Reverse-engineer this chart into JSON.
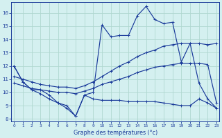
{
  "series": [
    {
      "x": [
        0,
        1,
        2,
        3,
        4,
        5,
        6,
        7,
        8,
        9,
        10,
        11,
        12,
        13,
        14,
        15,
        16,
        17,
        18,
        19,
        20,
        21,
        22,
        23
      ],
      "y": [
        12.0,
        10.8,
        10.2,
        10.2,
        9.8,
        9.2,
        8.8,
        8.2,
        9.8,
        10.0,
        15.1,
        14.2,
        14.3,
        14.3,
        15.8,
        16.5,
        15.5,
        15.2,
        15.3,
        12.3,
        13.7,
        10.7,
        9.5,
        8.8
      ]
    },
    {
      "x": [
        0,
        1,
        2,
        3,
        4,
        5,
        6,
        7,
        8,
        9,
        10,
        11,
        12,
        13,
        14,
        15,
        16,
        17,
        18,
        19,
        20,
        21,
        22,
        23
      ],
      "y": [
        11.2,
        11.0,
        10.8,
        10.6,
        10.5,
        10.4,
        10.4,
        10.3,
        10.5,
        10.8,
        11.2,
        11.6,
        12.0,
        12.3,
        12.7,
        13.0,
        13.2,
        13.5,
        13.6,
        13.7,
        13.7,
        13.7,
        13.6,
        13.7
      ]
    },
    {
      "x": [
        0,
        1,
        2,
        3,
        4,
        5,
        6,
        7,
        8,
        9,
        10,
        11,
        12,
        13,
        14,
        15,
        16,
        17,
        18,
        19,
        20,
        21,
        22,
        23
      ],
      "y": [
        10.7,
        10.5,
        10.3,
        10.2,
        10.1,
        10.0,
        10.0,
        9.9,
        10.1,
        10.3,
        10.6,
        10.8,
        11.0,
        11.2,
        11.5,
        11.7,
        11.9,
        12.0,
        12.1,
        12.2,
        12.2,
        12.2,
        12.1,
        9.2
      ]
    },
    {
      "x": [
        0,
        1,
        2,
        3,
        4,
        5,
        6,
        7,
        8,
        9,
        10,
        11,
        12,
        13,
        14,
        15,
        16,
        17,
        18,
        19,
        20,
        21,
        22,
        23
      ],
      "y": [
        12.0,
        10.8,
        10.2,
        9.9,
        9.5,
        9.2,
        9.0,
        8.2,
        9.8,
        9.5,
        9.4,
        9.4,
        9.4,
        9.3,
        9.3,
        9.3,
        9.3,
        9.2,
        9.1,
        9.0,
        9.0,
        9.5,
        9.2,
        8.8
      ]
    }
  ],
  "xlim": [
    -0.3,
    23.3
  ],
  "ylim": [
    7.8,
    16.8
  ],
  "yticks": [
    8,
    9,
    10,
    11,
    12,
    13,
    14,
    15,
    16
  ],
  "xticks": [
    0,
    1,
    2,
    3,
    4,
    5,
    6,
    7,
    8,
    9,
    10,
    11,
    12,
    13,
    14,
    15,
    16,
    17,
    18,
    19,
    20,
    21,
    22,
    23
  ],
  "xlabel": "Graphe des températures (°c)",
  "background_color": "#d4f0f0",
  "grid_color": "#b0d8d0",
  "line_color": "#1a3a9a",
  "text_color": "#1a3a9a",
  "figwidth": 3.2,
  "figheight": 2.0,
  "dpi": 100
}
